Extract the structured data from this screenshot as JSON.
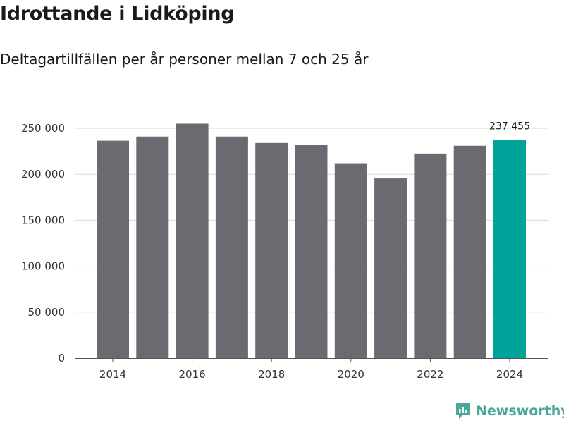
{
  "title": "Idrottande i Lidköping",
  "subtitle": "Deltagartillfällen per år personer mellan 7 och 25 år",
  "brand": "Newsworthy",
  "colors": {
    "bar": "#6b6a70",
    "highlight": "#00a39a",
    "grid": "#d9d9d9",
    "brand": "#4aa79a"
  },
  "chart_data": {
    "type": "bar",
    "title": "Idrottande i Lidköping",
    "subtitle": "Deltagartillfällen per år personer mellan 7 och 25 år",
    "xlabel": "",
    "ylabel": "",
    "categories": [
      "2014",
      "2015",
      "2016",
      "2017",
      "2018",
      "2019",
      "2020",
      "2021",
      "2022",
      "2023",
      "2024"
    ],
    "values": [
      236500,
      241000,
      255000,
      241000,
      234000,
      232000,
      212000,
      195500,
      222500,
      231000,
      237455
    ],
    "highlight_index": 10,
    "ylim": [
      0,
      250000
    ],
    "yticks": [
      0,
      50000,
      100000,
      150000,
      200000,
      250000
    ],
    "ytick_labels": [
      "0",
      "50 000",
      "100 000",
      "150 000",
      "200 000",
      "250 000"
    ],
    "xtick_labels": [
      "2014",
      "2016",
      "2018",
      "2020",
      "2022",
      "2024"
    ],
    "data_labels": [
      {
        "index": 10,
        "text": "237 455"
      }
    ],
    "grid": true,
    "legend": "none"
  }
}
